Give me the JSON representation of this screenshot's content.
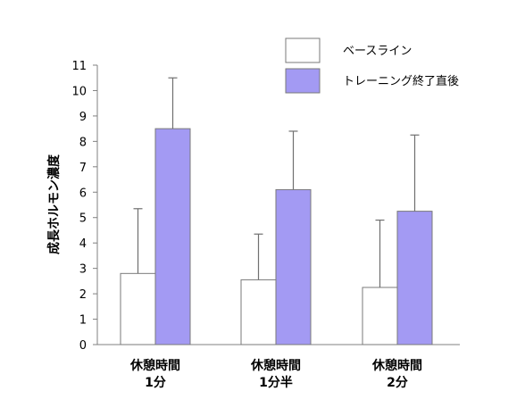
{
  "chart_data": {
    "type": "bar",
    "ylabel": "成長ホルモン濃度",
    "ylim": [
      0,
      11
    ],
    "yticks": [
      0,
      1,
      2,
      3,
      4,
      5,
      6,
      7,
      8,
      9,
      10,
      11
    ],
    "grid": false,
    "legend_position": "top-right",
    "categories": [
      [
        "休憩時間",
        "1分"
      ],
      [
        "休憩時間",
        "1分半"
      ],
      [
        "休憩時間",
        "2分"
      ]
    ],
    "series": [
      {
        "name": "ベースライン",
        "color": "#ffffff",
        "values": [
          2.8,
          2.55,
          2.25
        ],
        "error": [
          2.55,
          1.8,
          2.65
        ]
      },
      {
        "name": "トレーニング終了直後",
        "color": "#a39af3",
        "values": [
          8.5,
          6.1,
          5.25
        ],
        "error": [
          2.0,
          2.3,
          3.0
        ]
      }
    ]
  }
}
